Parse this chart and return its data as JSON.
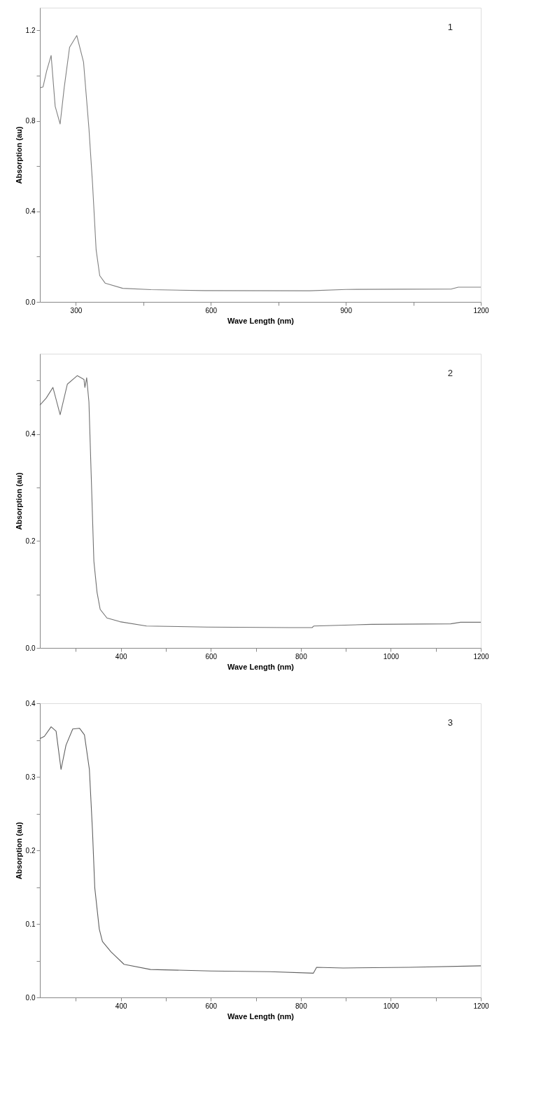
{
  "chart_data": [
    {
      "type": "line",
      "xlabel": "Wave Length (nm)",
      "ylabel": "Absorption (au)",
      "annotations": [
        "1"
      ],
      "grid": false,
      "xlim": [
        220,
        1200
      ],
      "ylim": [
        0,
        1.3
      ],
      "xticks": [
        300,
        {
          "value": 450,
          "label": null
        },
        600,
        {
          "value": 750,
          "label": null
        },
        900,
        {
          "value": 1050,
          "label": null
        },
        1200
      ],
      "yticks": [
        {
          "value": 0,
          "label": "0.0"
        },
        {
          "value": 0.2,
          "label": null
        },
        0.4,
        {
          "value": 0.6,
          "label": null
        },
        0.8,
        {
          "value": 1.0,
          "label": null
        },
        1.2
      ],
      "series": [
        {
          "color": "#808080",
          "x": [
            220,
            227,
            235,
            245,
            254,
            265,
            274,
            286,
            302,
            317,
            329,
            337,
            345,
            353,
            365,
            404,
            467,
            585,
            820,
            900,
            1135,
            1150,
            1200
          ],
          "values": [
            0.946,
            0.95,
            1.02,
            1.089,
            0.864,
            0.786,
            0.946,
            1.125,
            1.177,
            1.06,
            0.767,
            0.523,
            0.23,
            0.116,
            0.083,
            0.06,
            0.054,
            0.05,
            0.049,
            0.055,
            0.057,
            0.065,
            0.065
          ]
        }
      ]
    },
    {
      "type": "line",
      "xlabel": "Wave Length (nm)",
      "ylabel": "Absorption (au)",
      "annotations": [
        "2"
      ],
      "grid": false,
      "xlim": [
        220,
        1200
      ],
      "ylim": [
        0,
        0.55
      ],
      "xticks": [
        {
          "value": 300,
          "label": null
        },
        400,
        {
          "value": 500,
          "label": null
        },
        600,
        {
          "value": 700,
          "label": null
        },
        800,
        {
          "value": 900,
          "label": null
        },
        1000,
        {
          "value": 1100,
          "label": null
        },
        1200
      ],
      "yticks": [
        {
          "value": 0,
          "label": "0.0"
        },
        {
          "value": 0.1,
          "label": null
        },
        0.2,
        {
          "value": 0.3,
          "label": null
        },
        0.4,
        {
          "value": 0.5,
          "label": null
        }
      ],
      "series": [
        {
          "color": "#707070",
          "x": [
            220,
            234,
            249,
            265,
            281,
            303,
            318,
            320,
            324,
            329,
            334,
            340,
            347,
            354,
            369,
            398,
            457,
            591,
            774,
            825,
            829,
            957,
            1133,
            1155,
            1200
          ],
          "values": [
            0.454,
            0.467,
            0.487,
            0.436,
            0.493,
            0.509,
            0.502,
            0.487,
            0.505,
            0.46,
            0.324,
            0.162,
            0.104,
            0.072,
            0.056,
            0.049,
            0.041,
            0.039,
            0.038,
            0.038,
            0.041,
            0.044,
            0.045,
            0.048,
            0.048
          ]
        }
      ]
    },
    {
      "type": "line",
      "xlabel": "Wave Length (nm)",
      "ylabel": "Absorption (au)",
      "annotations": [
        "3"
      ],
      "grid": false,
      "xlim": [
        220,
        1200
      ],
      "ylim": [
        0,
        0.4
      ],
      "xticks": [
        {
          "value": 300,
          "label": null
        },
        400,
        {
          "value": 500,
          "label": null
        },
        600,
        {
          "value": 700,
          "label": null
        },
        800,
        {
          "value": 900,
          "label": null
        },
        1000,
        {
          "value": 1100,
          "label": null
        },
        1200
      ],
      "yticks": [
        {
          "value": 0,
          "label": "0.0"
        },
        {
          "value": 0.05,
          "label": null
        },
        0.1,
        {
          "value": 0.15,
          "label": null
        },
        0.2,
        {
          "value": 0.25,
          "label": null
        },
        0.3,
        {
          "value": 0.35,
          "label": null
        },
        0.4
      ],
      "series": [
        {
          "color": "#606060",
          "x": [
            220,
            230,
            245,
            256,
            267,
            278,
            293,
            308,
            319,
            330,
            337,
            342,
            352,
            359,
            378,
            407,
            466,
            600,
            732,
            828,
            835,
            894,
            1041,
            1200
          ],
          "values": [
            0.352,
            0.355,
            0.368,
            0.362,
            0.31,
            0.343,
            0.365,
            0.366,
            0.357,
            0.31,
            0.225,
            0.149,
            0.093,
            0.076,
            0.062,
            0.045,
            0.038,
            0.036,
            0.035,
            0.033,
            0.041,
            0.04,
            0.041,
            0.043
          ]
        }
      ]
    }
  ]
}
